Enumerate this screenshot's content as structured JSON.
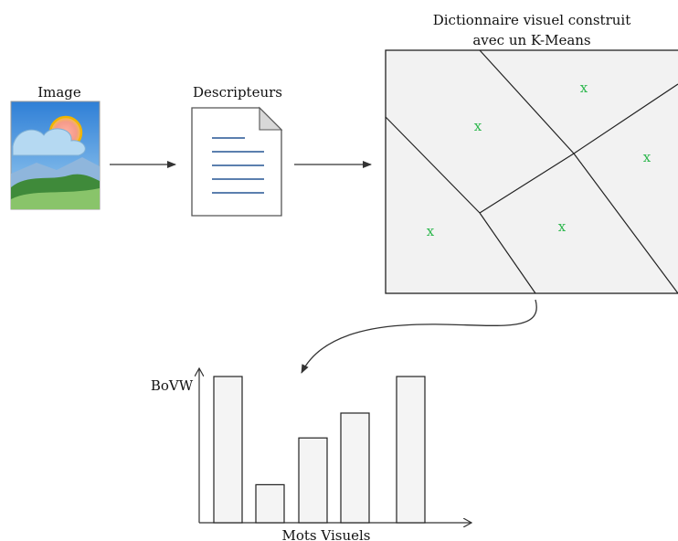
{
  "labels": {
    "image": "Image",
    "descriptors": "Descripteurs",
    "dictionary_line1": "Dictionnaire visuel construit",
    "dictionary_line2": "avec un K-Means",
    "bovw_axis": "BoVW",
    "words_axis": "Mots Visuels"
  },
  "clusters": {
    "centroid_marker": "x",
    "centroid_color": "#2fb84f",
    "count": 5
  },
  "chart_data": {
    "type": "bar",
    "categories": [
      "",
      "",
      "",
      "",
      ""
    ],
    "values": [
      10,
      2.6,
      5.8,
      7.5,
      10
    ],
    "title": "",
    "xlabel": "Mots Visuels",
    "ylabel": "BoVW",
    "ylim": [
      0,
      11
    ],
    "grid": false,
    "legend": "none"
  },
  "colors": {
    "stroke": "#222222",
    "panel_fill": "#f2f2f2",
    "bar_fill": "#f4f4f4",
    "doc_line": "#5b7fae"
  },
  "icons": {
    "image": "landscape-picture-icon",
    "document": "document-icon"
  }
}
